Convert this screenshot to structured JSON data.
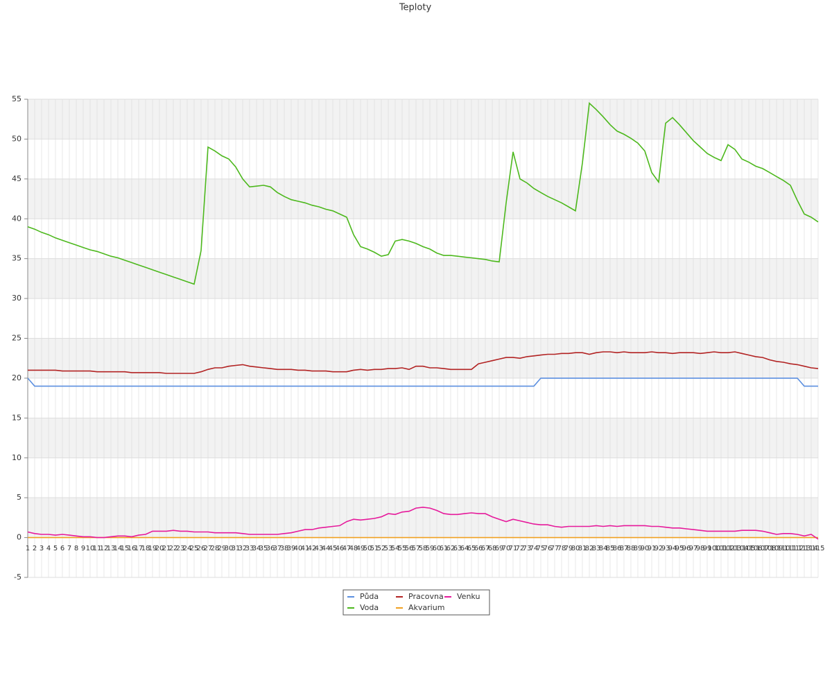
{
  "chart_data": {
    "type": "line",
    "title": "Teploty",
    "x": [
      1,
      2,
      3,
      4,
      5,
      6,
      7,
      8,
      9,
      10,
      11,
      12,
      13,
      14,
      15,
      16,
      17,
      18,
      19,
      20,
      21,
      22,
      23,
      24,
      25,
      26,
      27,
      28,
      29,
      30,
      31,
      32,
      33,
      34,
      35,
      36,
      37,
      38,
      39,
      40,
      41,
      42,
      43,
      44,
      45,
      46,
      47,
      48,
      49,
      50,
      51,
      52,
      53,
      54,
      55,
      56,
      57,
      58,
      59,
      60,
      61,
      62,
      63,
      64,
      65,
      66,
      67,
      68,
      69,
      70,
      71,
      72,
      73,
      74,
      75,
      76,
      77,
      78,
      79,
      80,
      81,
      82,
      83,
      84,
      85,
      86,
      87,
      88,
      89,
      90,
      91,
      92,
      93,
      94,
      95,
      96,
      97,
      98,
      99,
      100,
      101,
      102,
      103,
      104,
      105,
      106,
      107,
      108,
      109,
      110,
      111,
      112,
      113,
      114,
      115
    ],
    "xlim": [
      1,
      115
    ],
    "ylim": [
      -5,
      55
    ],
    "yticks": [
      -5,
      0,
      5,
      10,
      15,
      20,
      25,
      30,
      35,
      40,
      45,
      50,
      55
    ],
    "grid": true,
    "legend": "bottom",
    "series": [
      {
        "name": "Půda",
        "color": "#5b8fe0",
        "values": [
          20,
          19,
          19,
          19,
          19,
          19,
          19,
          19,
          19,
          19,
          19,
          19,
          19,
          19,
          19,
          19,
          19,
          19,
          19,
          19,
          19,
          19,
          19,
          19,
          19,
          19,
          19,
          19,
          19,
          19,
          19,
          19,
          19,
          19,
          19,
          19,
          19,
          19,
          19,
          19,
          19,
          19,
          19,
          19,
          19,
          19,
          19,
          19,
          19,
          19,
          19,
          19,
          19,
          19,
          19,
          19,
          19,
          19,
          19,
          19,
          19,
          19,
          19,
          19,
          19,
          19,
          19,
          19,
          19,
          19,
          19,
          19,
          19,
          19,
          20,
          20,
          20,
          20,
          20,
          20,
          20,
          20,
          20,
          20,
          20,
          20,
          20,
          20,
          20,
          20,
          20,
          20,
          20,
          20,
          20,
          20,
          20,
          20,
          20,
          20,
          20,
          20,
          20,
          20,
          20,
          20,
          20,
          20,
          20,
          20,
          20,
          20,
          19,
          19,
          19
        ]
      },
      {
        "name": "Voda",
        "color": "#4cb81c",
        "values": [
          39.0,
          38.7,
          38.3,
          38.0,
          37.6,
          37.3,
          37.0,
          36.7,
          36.4,
          36.1,
          35.9,
          35.6,
          35.3,
          35.1,
          34.8,
          34.5,
          34.2,
          33.9,
          33.6,
          33.3,
          33.0,
          32.7,
          32.4,
          32.1,
          31.8,
          36.0,
          49.0,
          48.5,
          47.9,
          47.5,
          46.5,
          45.0,
          44.0,
          44.1,
          44.2,
          44.0,
          43.3,
          42.8,
          42.4,
          42.2,
          42.0,
          41.7,
          41.5,
          41.2,
          41.0,
          40.6,
          40.2,
          38.0,
          36.5,
          36.2,
          35.8,
          35.3,
          35.5,
          37.2,
          37.4,
          37.2,
          36.9,
          36.5,
          36.2,
          35.7,
          35.4,
          35.4,
          35.3,
          35.2,
          35.1,
          35.0,
          34.9,
          34.7,
          34.6,
          42.0,
          48.4,
          45.0,
          44.5,
          43.8,
          43.3,
          42.8,
          42.4,
          42.0,
          41.5,
          41.0,
          47.0,
          54.5,
          53.7,
          52.8,
          51.8,
          51.0,
          50.6,
          50.1,
          49.5,
          48.5,
          45.8,
          44.6,
          52.0,
          52.7,
          51.8,
          50.8,
          49.8,
          49.0,
          48.2,
          47.7,
          47.3,
          49.3,
          48.7,
          47.5,
          47.1,
          46.6,
          46.3,
          45.8,
          45.3,
          44.8,
          44.2,
          42.3,
          40.6,
          40.2,
          39.6
        ]
      },
      {
        "name": "Pracovna",
        "color": "#b22222",
        "values": [
          21.0,
          21.0,
          21.0,
          21.0,
          21.0,
          20.9,
          20.9,
          20.9,
          20.9,
          20.9,
          20.8,
          20.8,
          20.8,
          20.8,
          20.8,
          20.7,
          20.7,
          20.7,
          20.7,
          20.7,
          20.6,
          20.6,
          20.6,
          20.6,
          20.6,
          20.8,
          21.1,
          21.3,
          21.3,
          21.5,
          21.6,
          21.7,
          21.5,
          21.4,
          21.3,
          21.2,
          21.1,
          21.1,
          21.1,
          21.0,
          21.0,
          20.9,
          20.9,
          20.9,
          20.8,
          20.8,
          20.8,
          21.0,
          21.1,
          21.0,
          21.1,
          21.1,
          21.2,
          21.2,
          21.3,
          21.1,
          21.5,
          21.5,
          21.3,
          21.3,
          21.2,
          21.1,
          21.1,
          21.1,
          21.1,
          21.8,
          22.0,
          22.2,
          22.4,
          22.6,
          22.6,
          22.5,
          22.7,
          22.8,
          22.9,
          23.0,
          23.0,
          23.1,
          23.1,
          23.2,
          23.2,
          23.0,
          23.2,
          23.3,
          23.3,
          23.2,
          23.3,
          23.2,
          23.2,
          23.2,
          23.3,
          23.2,
          23.2,
          23.1,
          23.2,
          23.2,
          23.2,
          23.1,
          23.2,
          23.3,
          23.2,
          23.2,
          23.3,
          23.1,
          22.9,
          22.7,
          22.6,
          22.3,
          22.1,
          22.0,
          21.8,
          21.7,
          21.5,
          21.3,
          21.2
        ]
      },
      {
        "name": "Akvarium",
        "color": "#f0a020",
        "values": [
          0,
          0,
          0,
          0,
          0,
          0,
          0,
          0,
          0,
          0,
          0,
          0,
          0,
          0,
          0,
          0,
          0,
          0,
          0,
          0,
          0,
          0,
          0,
          0,
          0,
          0,
          0,
          0,
          0,
          0,
          0,
          0,
          0,
          0,
          0,
          0,
          0,
          0,
          0,
          0,
          0,
          0,
          0,
          0,
          0,
          0,
          0,
          0,
          0,
          0,
          0,
          0,
          0,
          0,
          0,
          0,
          0,
          0,
          0,
          0,
          0,
          0,
          0,
          0,
          0,
          0,
          0,
          0,
          0,
          0,
          0,
          0,
          0,
          0,
          0,
          0,
          0,
          0,
          0,
          0,
          0,
          0,
          0,
          0,
          0,
          0,
          0,
          0,
          0,
          0,
          0,
          0,
          0,
          0,
          0,
          0,
          0,
          0,
          0,
          0,
          0,
          0,
          0,
          0,
          0,
          0,
          0,
          0,
          0,
          0,
          0,
          0,
          0,
          0,
          0
        ]
      },
      {
        "name": "Venku",
        "color": "#e6199b",
        "values": [
          0.7,
          0.5,
          0.4,
          0.4,
          0.3,
          0.4,
          0.3,
          0.2,
          0.1,
          0.1,
          0.0,
          0.0,
          0.1,
          0.2,
          0.2,
          0.1,
          0.3,
          0.4,
          0.8,
          0.8,
          0.8,
          0.9,
          0.8,
          0.8,
          0.7,
          0.7,
          0.7,
          0.6,
          0.6,
          0.6,
          0.6,
          0.5,
          0.4,
          0.4,
          0.4,
          0.4,
          0.4,
          0.5,
          0.6,
          0.8,
          1.0,
          1.0,
          1.2,
          1.3,
          1.4,
          1.5,
          2.0,
          2.3,
          2.2,
          2.3,
          2.4,
          2.6,
          3.0,
          2.9,
          3.2,
          3.3,
          3.7,
          3.8,
          3.7,
          3.4,
          3.0,
          2.9,
          2.9,
          3.0,
          3.1,
          3.0,
          3.0,
          2.6,
          2.3,
          2.0,
          2.3,
          2.1,
          1.9,
          1.7,
          1.6,
          1.6,
          1.4,
          1.3,
          1.4,
          1.4,
          1.4,
          1.4,
          1.5,
          1.4,
          1.5,
          1.4,
          1.5,
          1.5,
          1.5,
          1.5,
          1.4,
          1.4,
          1.3,
          1.2,
          1.2,
          1.1,
          1.0,
          0.9,
          0.8,
          0.8,
          0.8,
          0.8,
          0.8,
          0.9,
          0.9,
          0.9,
          0.8,
          0.6,
          0.4,
          0.5,
          0.5,
          0.4,
          0.2,
          0.4,
          -0.2
        ]
      }
    ]
  }
}
